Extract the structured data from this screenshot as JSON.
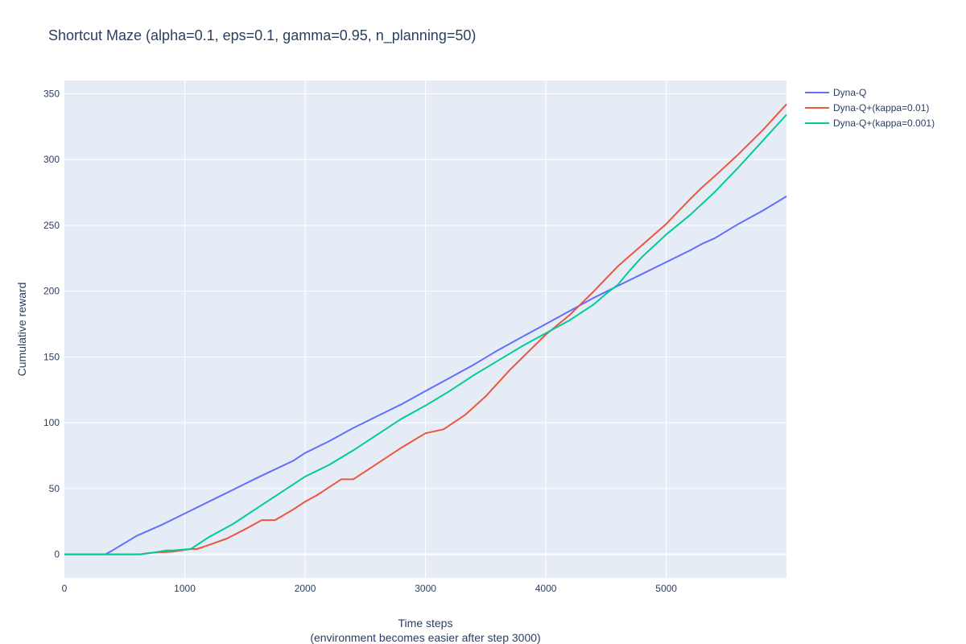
{
  "chart_data": {
    "type": "line",
    "title": "Shortcut Maze (alpha=0.1, eps=0.1, gamma=0.95, n_planning=50)",
    "xlabel": "Time steps",
    "xlabel_sub": "(environment becomes easier after step 3000)",
    "ylabel": "Cumulative reward",
    "xlim": [
      0,
      5999
    ],
    "ylim": [
      -18,
      360
    ],
    "x_ticks": [
      0,
      1000,
      2000,
      3000,
      4000,
      5000
    ],
    "x_tick_labels": [
      "0",
      "1000",
      "2000",
      "3000",
      "4000",
      "5000"
    ],
    "y_ticks": [
      0,
      50,
      100,
      150,
      200,
      250,
      300,
      350
    ],
    "y_tick_labels": [
      "0",
      "50",
      "100",
      "150",
      "200",
      "250",
      "300",
      "350"
    ],
    "legend_position": "top-right outside",
    "series": [
      {
        "name": "Dyna-Q",
        "color": "#636efa",
        "points": [
          [
            0,
            0
          ],
          [
            340,
            0
          ],
          [
            400,
            3
          ],
          [
            600,
            14
          ],
          [
            800,
            22
          ],
          [
            1000,
            31
          ],
          [
            1200,
            40
          ],
          [
            1400,
            49
          ],
          [
            1600,
            58
          ],
          [
            1760,
            65
          ],
          [
            1900,
            71
          ],
          [
            2000,
            77
          ],
          [
            2200,
            86
          ],
          [
            2400,
            96
          ],
          [
            2600,
            105
          ],
          [
            2800,
            114
          ],
          [
            3000,
            124
          ],
          [
            3200,
            134
          ],
          [
            3400,
            144
          ],
          [
            3600,
            155
          ],
          [
            3800,
            165
          ],
          [
            4000,
            175
          ],
          [
            4200,
            185
          ],
          [
            4400,
            195
          ],
          [
            4600,
            204
          ],
          [
            4800,
            213
          ],
          [
            5000,
            222
          ],
          [
            5200,
            231
          ],
          [
            5300,
            236
          ],
          [
            5400,
            240
          ],
          [
            5600,
            251
          ],
          [
            5800,
            261
          ],
          [
            5999,
            272
          ]
        ]
      },
      {
        "name": "Dyna-Q+(kappa=0.01)",
        "color": "#ef553b",
        "points": [
          [
            0,
            0
          ],
          [
            630,
            0
          ],
          [
            700,
            1
          ],
          [
            900,
            2
          ],
          [
            1050,
            4
          ],
          [
            1100,
            4
          ],
          [
            1200,
            7
          ],
          [
            1350,
            12
          ],
          [
            1500,
            19
          ],
          [
            1640,
            26
          ],
          [
            1750,
            26
          ],
          [
            1900,
            34
          ],
          [
            2000,
            40
          ],
          [
            2100,
            45
          ],
          [
            2200,
            51
          ],
          [
            2300,
            57
          ],
          [
            2400,
            57
          ],
          [
            2600,
            69
          ],
          [
            2800,
            81
          ],
          [
            3000,
            92
          ],
          [
            3150,
            95
          ],
          [
            3200,
            98
          ],
          [
            3330,
            106
          ],
          [
            3500,
            120
          ],
          [
            3700,
            140
          ],
          [
            3900,
            158
          ],
          [
            4000,
            167
          ],
          [
            4200,
            182
          ],
          [
            4400,
            200
          ],
          [
            4600,
            219
          ],
          [
            4800,
            235
          ],
          [
            5000,
            251
          ],
          [
            5200,
            270
          ],
          [
            5300,
            279
          ],
          [
            5400,
            287
          ],
          [
            5600,
            304
          ],
          [
            5800,
            322
          ],
          [
            5999,
            342
          ]
        ]
      },
      {
        "name": "Dyna-Q+(kappa=0.001)",
        "color": "#00cc96",
        "points": [
          [
            0,
            0
          ],
          [
            630,
            0
          ],
          [
            720,
            1
          ],
          [
            850,
            3
          ],
          [
            900,
            3
          ],
          [
            1050,
            4
          ],
          [
            1100,
            7
          ],
          [
            1200,
            13
          ],
          [
            1400,
            23
          ],
          [
            1600,
            35
          ],
          [
            1800,
            47
          ],
          [
            2000,
            59
          ],
          [
            2200,
            68
          ],
          [
            2400,
            79
          ],
          [
            2600,
            91
          ],
          [
            2800,
            103
          ],
          [
            3000,
            113
          ],
          [
            3200,
            124
          ],
          [
            3400,
            136
          ],
          [
            3600,
            147
          ],
          [
            3800,
            158
          ],
          [
            4000,
            168
          ],
          [
            4200,
            178
          ],
          [
            4400,
            190
          ],
          [
            4500,
            198
          ],
          [
            4600,
            205
          ],
          [
            4700,
            216
          ],
          [
            4800,
            226
          ],
          [
            5000,
            243
          ],
          [
            5200,
            258
          ],
          [
            5400,
            275
          ],
          [
            5600,
            294
          ],
          [
            5800,
            314
          ],
          [
            5999,
            334
          ]
        ]
      }
    ]
  }
}
